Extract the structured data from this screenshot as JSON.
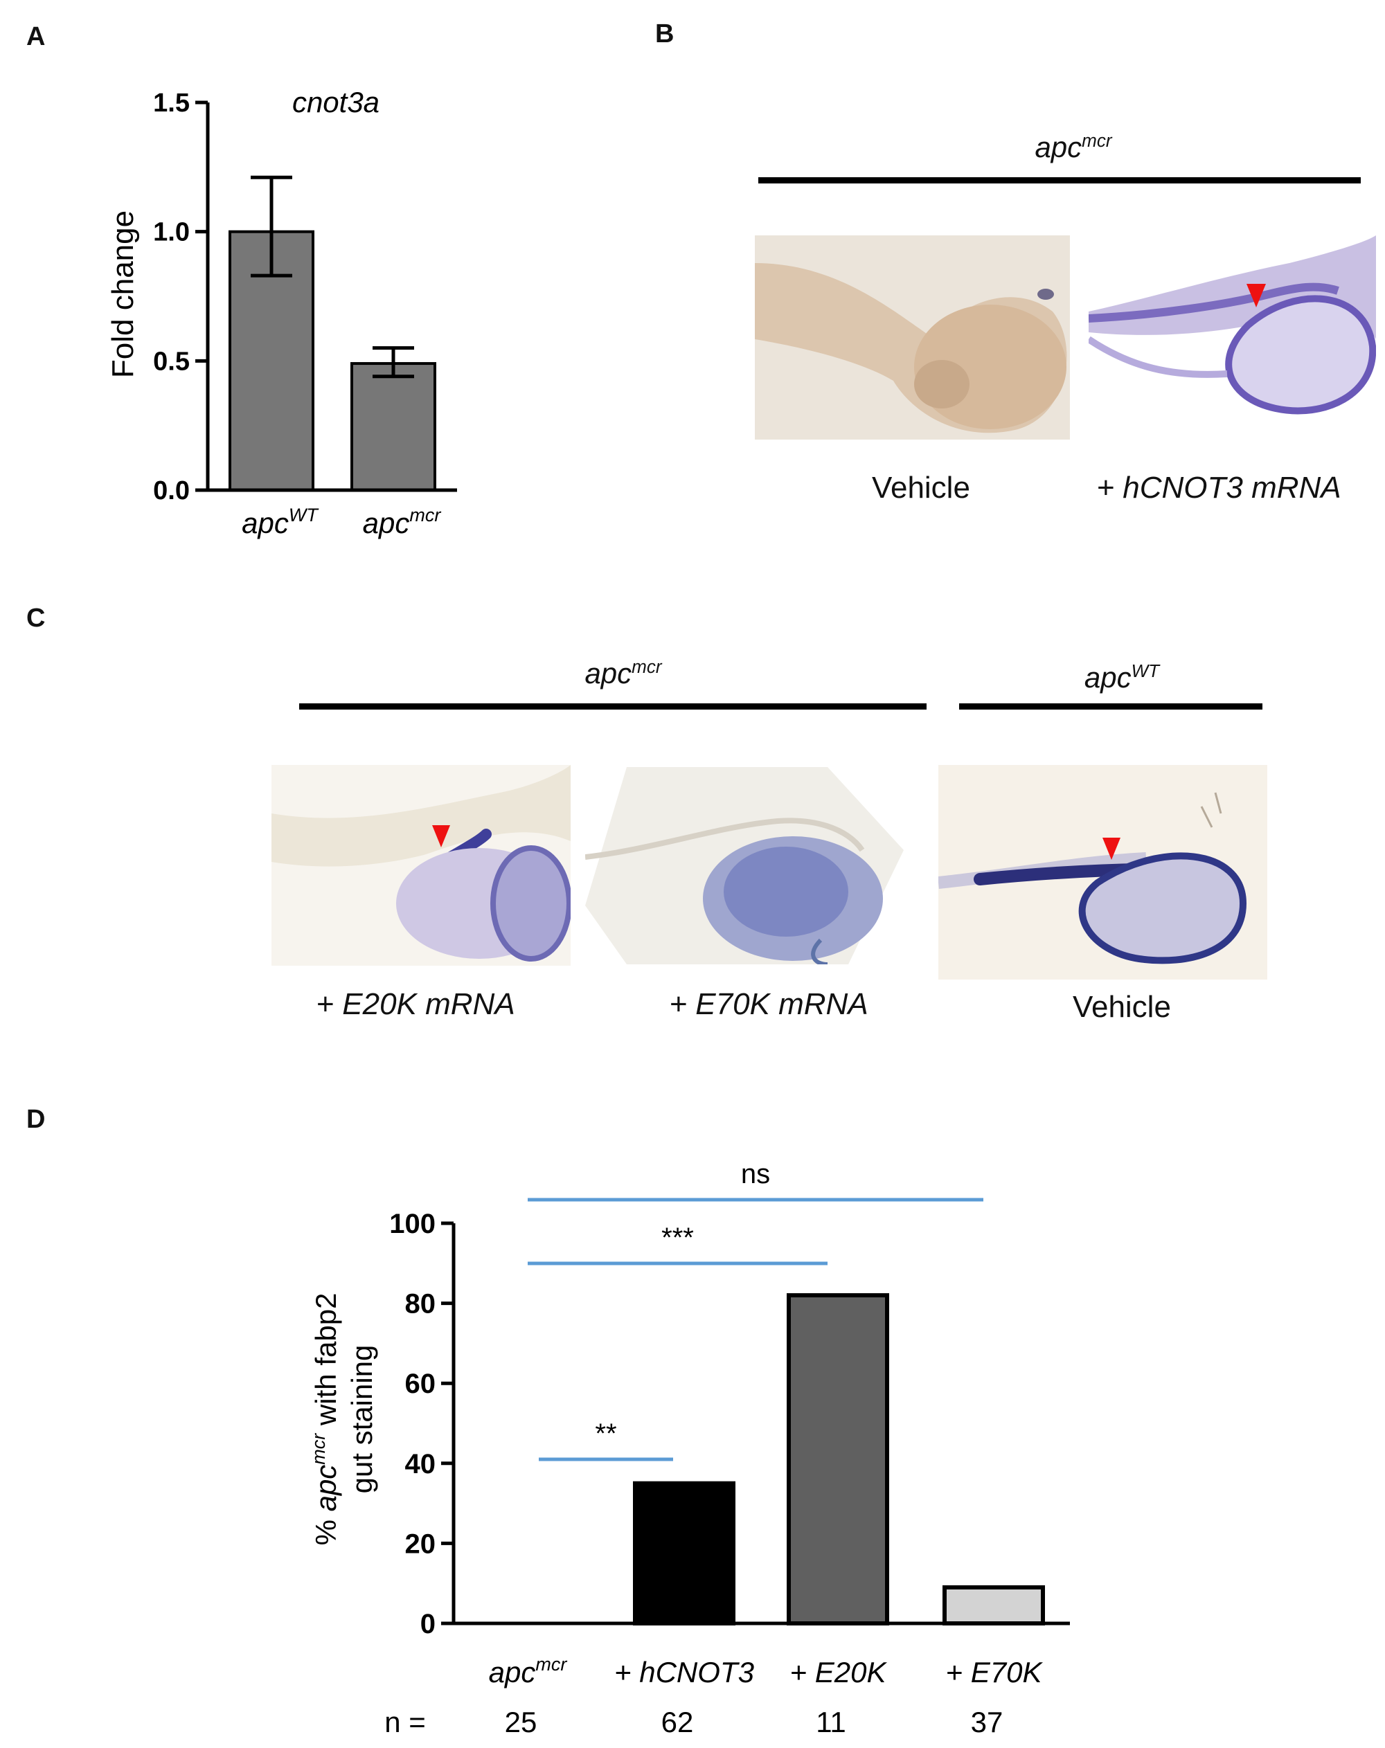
{
  "panels": {
    "A": "A",
    "B": "B",
    "C": "C",
    "D": "D"
  },
  "panel_b": {
    "group_base": "apc",
    "group_sup": "mcr",
    "captions": [
      "Vehicle",
      "+ hCNOT3 mRNA"
    ]
  },
  "panel_c": {
    "group1_base": "apc",
    "group1_sup": "mcr",
    "group2_base": "apc",
    "group2_sup": "WT",
    "captions": [
      "+ E20K  mRNA",
      "+ E70K mRNA",
      "Vehicle"
    ]
  },
  "chart_data": [
    {
      "type": "bar",
      "panel": "A",
      "title": "cnot3a",
      "ylabel": "Fold change",
      "categories": [
        {
          "base": "apc",
          "sup": "WT"
        },
        {
          "base": "apc",
          "sup": "mcr"
        }
      ],
      "values": [
        1.0,
        0.49
      ],
      "error_low": [
        0.83,
        0.44
      ],
      "error_high": [
        1.21,
        0.55
      ],
      "ylim": [
        0,
        1.5
      ],
      "yticks": [
        "0.0",
        "0.5",
        "1.0",
        "1.5"
      ],
      "ytick_values": [
        0,
        0.5,
        1.0,
        1.5
      ],
      "bar_color": "#777777"
    },
    {
      "type": "bar",
      "panel": "D",
      "ylabel_parts": {
        "prefix": "% ",
        "base": "apc",
        "sup": "mcr",
        "suffix": " with fabp2",
        "line2": "gut staining"
      },
      "categories": [
        {
          "base": "apc",
          "sup": "mcr"
        },
        {
          "base": "+ hCNOT3",
          "sup": ""
        },
        {
          "base": "+ E20K",
          "sup": ""
        },
        {
          "base": "+ E70K",
          "sup": ""
        }
      ],
      "values": [
        0,
        35,
        82,
        9
      ],
      "bar_colors": [
        "#ffffff",
        "#000000",
        "#606060",
        "#d3d3d3"
      ],
      "ylim": [
        0,
        100
      ],
      "yticks": [
        "0",
        "20",
        "40",
        "60",
        "80",
        "100"
      ],
      "ytick_values": [
        0,
        20,
        40,
        60,
        80,
        100
      ],
      "n_label": "n =",
      "n_values": [
        "25",
        "62",
        "11",
        "37"
      ],
      "significance": [
        {
          "from": 0,
          "to": 1,
          "label": "**"
        },
        {
          "from": 0,
          "to": 2,
          "label": "***"
        },
        {
          "from": 0,
          "to": 3,
          "label": "ns"
        }
      ],
      "sig_color": "#5b9bd5"
    }
  ]
}
